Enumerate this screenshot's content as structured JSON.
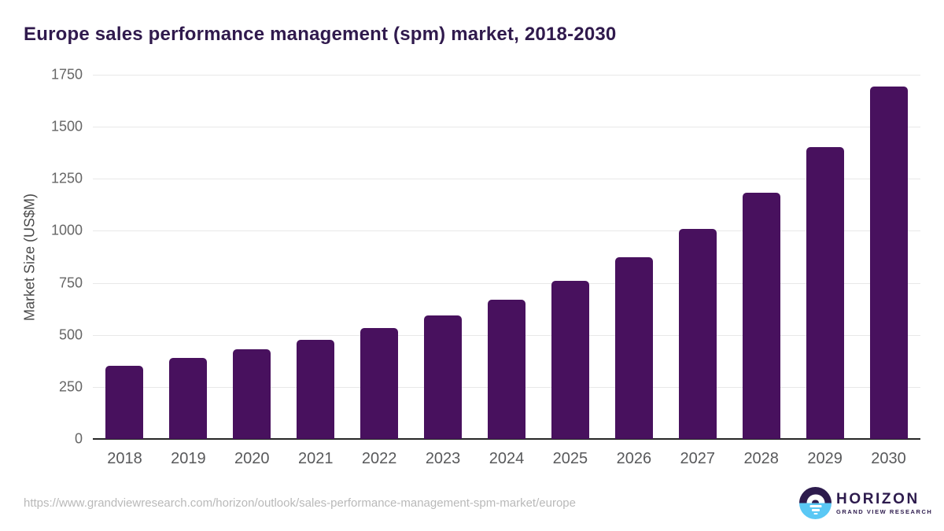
{
  "page_title": "Europe sales performance management (spm) market, 2018-2030",
  "chart_data": {
    "type": "bar",
    "title": "Europe sales performance management (spm) market, 2018-2030",
    "categories": [
      "2018",
      "2019",
      "2020",
      "2021",
      "2022",
      "2023",
      "2024",
      "2025",
      "2026",
      "2027",
      "2028",
      "2029",
      "2030"
    ],
    "values": [
      350,
      389,
      432,
      477,
      532,
      594,
      669,
      760,
      873,
      1009,
      1184,
      1404,
      1693
    ],
    "xlabel": "",
    "ylabel": "Market Size (US$M)",
    "ylim": [
      0,
      1750
    ],
    "yticks": [
      0,
      250,
      500,
      750,
      1000,
      1250,
      1500,
      1750
    ],
    "grid": "horizontal-only",
    "legend": "none",
    "bar_corner": "rounded-top"
  },
  "footer": {
    "source_url": "https://www.grandviewresearch.com/horizon/outlook/sales-performance-management-spm-market/europe",
    "logo": {
      "name": "HORIZON",
      "subtitle": "GRAND VIEW RESEARCH",
      "icon": "horizon-sunset-circle-icon"
    }
  },
  "colors": {
    "bar": "#48115e",
    "title_text": "#301a4d",
    "gridline": "#e8e8e8",
    "axis_line": "#262626",
    "y_tick_label": "#666666",
    "x_tick_label": "#58595b",
    "url_text": "#b9b9b9",
    "logo_purple": "#2d1b4d",
    "logo_blue": "#5ac8f5",
    "background": "#ffffff"
  }
}
